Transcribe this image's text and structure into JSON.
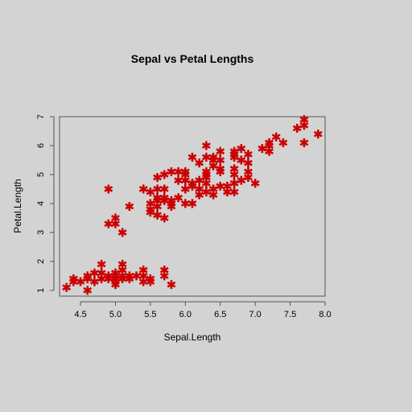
{
  "chart_data": {
    "type": "scatter",
    "title": "Sepal vs Petal Lengths",
    "xlabel": "Sepal.Length",
    "ylabel": "Petal.Length",
    "xlim": [
      4.2,
      8.0
    ],
    "ylim": [
      0.8,
      7.0
    ],
    "x_ticks": [
      "4.5",
      "5.0",
      "5.5",
      "6.0",
      "6.5",
      "7.0",
      "7.5",
      "8.0"
    ],
    "y_ticks": [
      "1",
      "2",
      "3",
      "4",
      "5",
      "6",
      "7"
    ],
    "grid": false,
    "legend": "none",
    "marker": "asterisk",
    "point_color": "#cc0000",
    "points": [
      [
        4.3,
        1.1
      ],
      [
        4.4,
        1.3
      ],
      [
        4.4,
        1.4
      ],
      [
        4.5,
        1.3
      ],
      [
        4.6,
        1.0
      ],
      [
        4.6,
        1.4
      ],
      [
        4.6,
        1.5
      ],
      [
        4.7,
        1.3
      ],
      [
        4.7,
        1.6
      ],
      [
        4.8,
        1.4
      ],
      [
        4.8,
        1.6
      ],
      [
        4.8,
        1.9
      ],
      [
        4.9,
        1.4
      ],
      [
        4.9,
        1.5
      ],
      [
        4.9,
        4.5
      ],
      [
        4.9,
        3.3
      ],
      [
        5.0,
        1.2
      ],
      [
        5.0,
        1.3
      ],
      [
        5.0,
        1.4
      ],
      [
        5.0,
        1.5
      ],
      [
        5.0,
        1.6
      ],
      [
        5.0,
        3.3
      ],
      [
        5.0,
        3.5
      ],
      [
        5.1,
        1.4
      ],
      [
        5.1,
        1.5
      ],
      [
        5.1,
        1.7
      ],
      [
        5.1,
        1.9
      ],
      [
        5.1,
        3.0
      ],
      [
        5.2,
        1.4
      ],
      [
        5.2,
        1.5
      ],
      [
        5.2,
        3.9
      ],
      [
        5.3,
        1.5
      ],
      [
        5.4,
        1.3
      ],
      [
        5.4,
        1.5
      ],
      [
        5.4,
        1.7
      ],
      [
        5.4,
        4.5
      ],
      [
        5.5,
        1.3
      ],
      [
        5.5,
        1.4
      ],
      [
        5.5,
        3.7
      ],
      [
        5.5,
        3.8
      ],
      [
        5.5,
        4.0
      ],
      [
        5.5,
        4.4
      ],
      [
        5.6,
        3.6
      ],
      [
        5.6,
        3.9
      ],
      [
        5.6,
        4.1
      ],
      [
        5.6,
        4.2
      ],
      [
        5.6,
        4.5
      ],
      [
        5.6,
        4.9
      ],
      [
        5.7,
        1.5
      ],
      [
        5.7,
        1.7
      ],
      [
        5.7,
        3.5
      ],
      [
        5.7,
        4.1
      ],
      [
        5.7,
        4.2
      ],
      [
        5.7,
        4.5
      ],
      [
        5.7,
        5.0
      ],
      [
        5.8,
        1.2
      ],
      [
        5.8,
        3.9
      ],
      [
        5.8,
        4.0
      ],
      [
        5.8,
        4.1
      ],
      [
        5.8,
        5.1
      ],
      [
        5.9,
        4.2
      ],
      [
        5.9,
        4.8
      ],
      [
        5.9,
        5.1
      ],
      [
        6.0,
        4.0
      ],
      [
        6.0,
        4.5
      ],
      [
        6.0,
        4.8
      ],
      [
        6.0,
        5.0
      ],
      [
        6.0,
        5.1
      ],
      [
        6.1,
        4.0
      ],
      [
        6.1,
        4.6
      ],
      [
        6.1,
        4.7
      ],
      [
        6.1,
        5.6
      ],
      [
        6.2,
        4.3
      ],
      [
        6.2,
        4.5
      ],
      [
        6.2,
        4.8
      ],
      [
        6.2,
        5.4
      ],
      [
        6.3,
        4.4
      ],
      [
        6.3,
        4.7
      ],
      [
        6.3,
        4.9
      ],
      [
        6.3,
        5.0
      ],
      [
        6.3,
        5.1
      ],
      [
        6.3,
        5.6
      ],
      [
        6.3,
        6.0
      ],
      [
        6.4,
        4.3
      ],
      [
        6.4,
        4.5
      ],
      [
        6.4,
        5.3
      ],
      [
        6.4,
        5.5
      ],
      [
        6.4,
        5.6
      ],
      [
        6.5,
        4.6
      ],
      [
        6.5,
        5.1
      ],
      [
        6.5,
        5.2
      ],
      [
        6.5,
        5.5
      ],
      [
        6.5,
        5.8
      ],
      [
        6.6,
        4.4
      ],
      [
        6.6,
        4.6
      ],
      [
        6.7,
        4.4
      ],
      [
        6.7,
        4.7
      ],
      [
        6.7,
        5.0
      ],
      [
        6.7,
        5.2
      ],
      [
        6.7,
        5.6
      ],
      [
        6.7,
        5.7
      ],
      [
        6.7,
        5.8
      ],
      [
        6.8,
        4.8
      ],
      [
        6.8,
        5.5
      ],
      [
        6.8,
        5.9
      ],
      [
        6.9,
        4.9
      ],
      [
        6.9,
        5.1
      ],
      [
        6.9,
        5.4
      ],
      [
        6.9,
        5.7
      ],
      [
        7.0,
        4.7
      ],
      [
        7.1,
        5.9
      ],
      [
        7.2,
        5.8
      ],
      [
        7.2,
        6.0
      ],
      [
        7.2,
        6.1
      ],
      [
        7.3,
        6.3
      ],
      [
        7.4,
        6.1
      ],
      [
        7.6,
        6.6
      ],
      [
        7.7,
        6.1
      ],
      [
        7.7,
        6.7
      ],
      [
        7.7,
        6.9
      ],
      [
        7.9,
        6.4
      ]
    ]
  }
}
